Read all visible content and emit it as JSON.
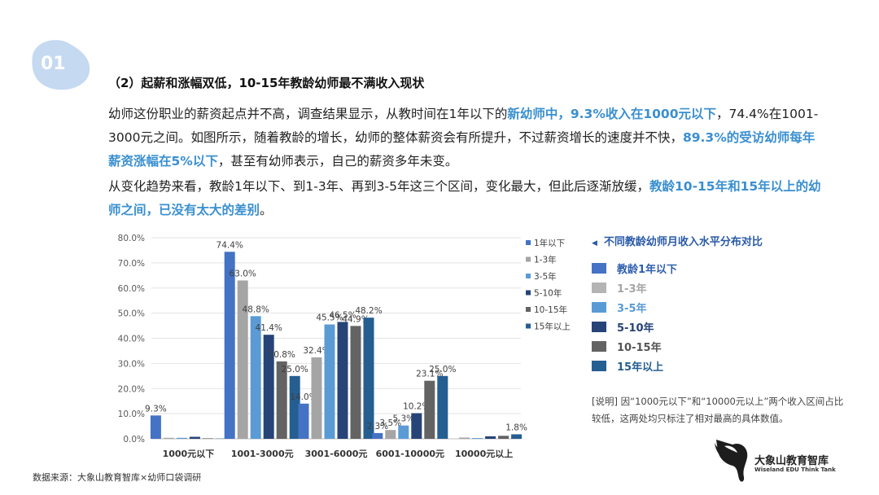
{
  "badge": {
    "number": "01"
  },
  "heading": "（2）起薪和涨幅双低，10-15年教龄幼师最不满收入现状",
  "paragraph1": {
    "t1": "幼师这份职业的薪资起点并不高，调查结果显示，从教时间在1年以下的",
    "h1": "新幼师中，9.3%收入在1000元以下",
    "t2": "，74.4%在1001-3000元之间。如图所示，随着教龄的增长，幼师的整体薪资会有所提升，不过薪资增长的速度并不快，",
    "h2": "89.3%的受访幼师每年薪资涨幅在5%以下",
    "t3": "，甚至有幼师表示，自己的薪资多年未变。"
  },
  "paragraph2": {
    "t1": "从变化趋势来看，教龄1年以下、到1-3年、再到3-5年这三个区间，变化最大，但此后逐渐放缓，",
    "h1": "教龄10-15年和15年以上的幼师之间，已没有太大的差别",
    "t2": "。"
  },
  "chart_data": {
    "type": "bar",
    "categories": [
      "1000元以下",
      "1001-3000元",
      "3001-6000元",
      "6001-10000元",
      "10000元以上"
    ],
    "ylim": [
      0,
      80
    ],
    "yticks": [
      "0.0%",
      "10.0%",
      "20.0%",
      "30.0%",
      "40.0%",
      "50.0%",
      "60.0%",
      "70.0%",
      "80.0%"
    ],
    "grid": true,
    "legend_position": "right",
    "series": [
      {
        "name": "1年以下",
        "color": "#4472c4",
        "values": [
          9.3,
          74.4,
          14.0,
          2.3,
          0.0
        ],
        "labels": [
          "9.3%",
          "74.4%",
          "14.0%",
          "2.3%",
          ""
        ]
      },
      {
        "name": "1-3年",
        "color": "#a5a5a5",
        "values": [
          0.4,
          63.0,
          32.4,
          3.5,
          0.5
        ],
        "labels": [
          "",
          "63.0%",
          "32.4%",
          "3.5%",
          ""
        ]
      },
      {
        "name": "3-5年",
        "color": "#5b9bd5",
        "values": [
          0.4,
          48.8,
          45.5,
          5.3,
          0.3
        ],
        "labels": [
          "",
          "48.8%",
          "45.5%",
          "5.3%",
          ""
        ]
      },
      {
        "name": "5-10年",
        "color": "#264478",
        "values": [
          0.8,
          41.4,
          46.5,
          10.2,
          1.0
        ],
        "labels": [
          "",
          "41.4%",
          "46.5%",
          "10.2%",
          ""
        ]
      },
      {
        "name": "10-15年",
        "color": "#636363",
        "values": [
          0.2,
          30.8,
          44.9,
          23.1,
          1.2
        ],
        "labels": [
          "",
          "30.8%",
          "44.9%",
          "23.1%",
          ""
        ]
      },
      {
        "name": "15年以上",
        "color": "#255e91",
        "values": [
          0.1,
          25.0,
          48.2,
          25.0,
          1.8
        ],
        "labels": [
          "",
          "25.0%",
          "48.2%",
          "25.0%",
          "1.8%"
        ]
      }
    ]
  },
  "side_panel": {
    "title": "不同教龄幼师月收入水平分布对比",
    "arrow": "◀",
    "items": [
      {
        "label": "教龄1年以下",
        "color": "#4472c4",
        "text_color": "#2f5fb0"
      },
      {
        "label": "1-3年",
        "color": "#b4b4b4",
        "text_color": "#a5a5a5"
      },
      {
        "label": "3-5年",
        "color": "#5b9bd5",
        "text_color": "#5b9bd5"
      },
      {
        "label": "5-10年",
        "color": "#264478",
        "text_color": "#264478"
      },
      {
        "label": "10-15年",
        "color": "#636363",
        "text_color": "#555555"
      },
      {
        "label": "15年以上",
        "color": "#255e91",
        "text_color": "#255e91"
      }
    ]
  },
  "note": "[说明] 因“1000元以下”和“10000元以上”两个收入区间占比较低，这两处均只标注了相对最高的具体数值。",
  "source": "数据来源：大象山教育智库×幼师口袋调研",
  "logo": {
    "name": "大象山教育智库",
    "english": "Wiseland EDU Think Tank"
  }
}
